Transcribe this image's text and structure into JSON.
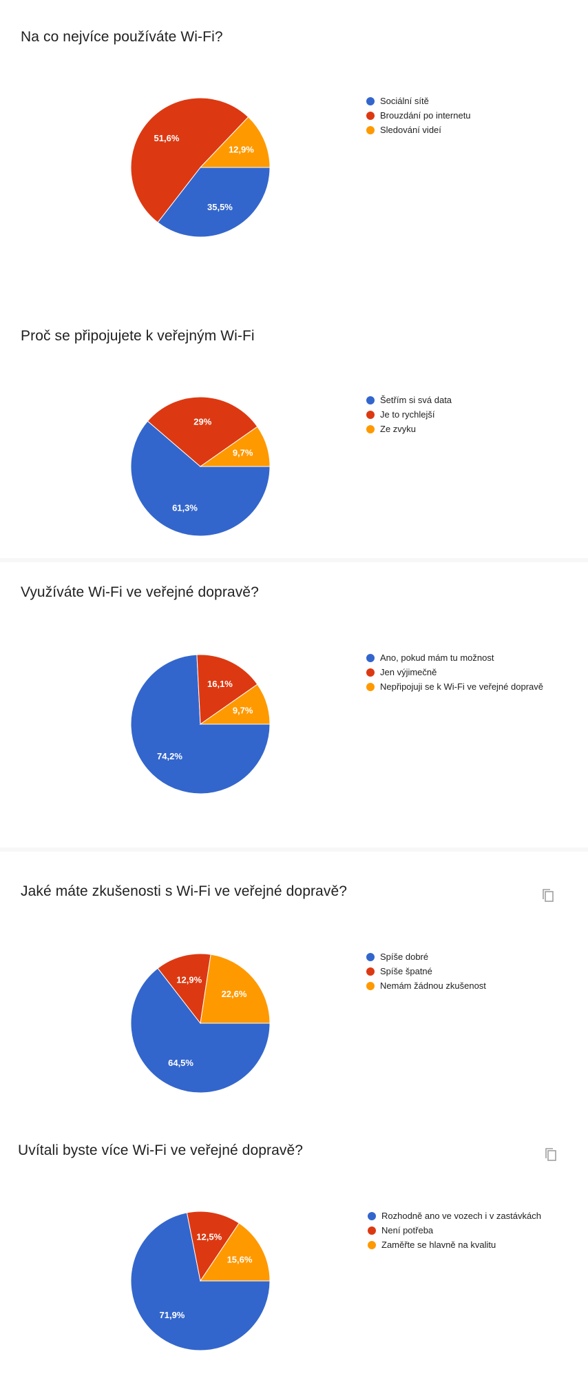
{
  "colors": {
    "blue": "#3366cc",
    "red": "#dc3912",
    "orange": "#ff9900"
  },
  "chart_data": [
    {
      "type": "pie",
      "title": "Na co nejvíce používáte Wi-Fi?",
      "series": [
        {
          "name": "Sociální sítě",
          "values": [
            35.5
          ],
          "label": "35,5%"
        },
        {
          "name": "Brouzdání po internetu",
          "values": [
            51.6
          ],
          "label": "51,6%"
        },
        {
          "name": "Sledování videí",
          "values": [
            12.9
          ],
          "label": "12,9%"
        }
      ],
      "legend": "right"
    },
    {
      "type": "pie",
      "title": "Proč se připojujete k veřejným Wi-Fi",
      "series": [
        {
          "name": "Šetřím si svá data",
          "values": [
            61.3
          ],
          "label": "61,3%"
        },
        {
          "name": "Je to rychlejší",
          "values": [
            29
          ],
          "label": "29%"
        },
        {
          "name": "Ze zvyku",
          "values": [
            9.7
          ],
          "label": "9,7%"
        }
      ],
      "legend": "right"
    },
    {
      "type": "pie",
      "title": "Využíváte Wi-Fi ve veřejné dopravě?",
      "series": [
        {
          "name": "Ano, pokud mám tu možnost",
          "values": [
            74.2
          ],
          "label": "74,2%"
        },
        {
          "name": "Jen výjimečně",
          "values": [
            16.1
          ],
          "label": "16,1%"
        },
        {
          "name": "Nepřipojuji se k Wi-Fi ve veřejné dopravě",
          "values": [
            9.7
          ],
          "label": "9,7%"
        }
      ],
      "legend": "right"
    },
    {
      "type": "pie",
      "title": "Jaké máte zkušenosti s Wi-Fi ve veřejné dopravě?",
      "series": [
        {
          "name": "Spíše dobré",
          "values": [
            64.5
          ],
          "label": "64,5%"
        },
        {
          "name": "Spíše špatné",
          "values": [
            12.9
          ],
          "label": "12,9%"
        },
        {
          "name": "Nemám žádnou zkušenost",
          "values": [
            22.6
          ],
          "label": "22,6%"
        }
      ],
      "legend": "right"
    },
    {
      "type": "pie",
      "title": "Uvítali byste více Wi-Fi ve veřejné dopravě?",
      "series": [
        {
          "name": "Rozhodně ano ve vozech i v zastávkách",
          "values": [
            71.9
          ],
          "label": "71,9%"
        },
        {
          "name": "Není potřeba",
          "values": [
            12.5
          ],
          "label": "12,5%"
        },
        {
          "name": "Zaměřte se hlavně na kvalitu",
          "values": [
            15.6
          ],
          "label": "15,6%"
        }
      ],
      "legend": "right"
    }
  ]
}
